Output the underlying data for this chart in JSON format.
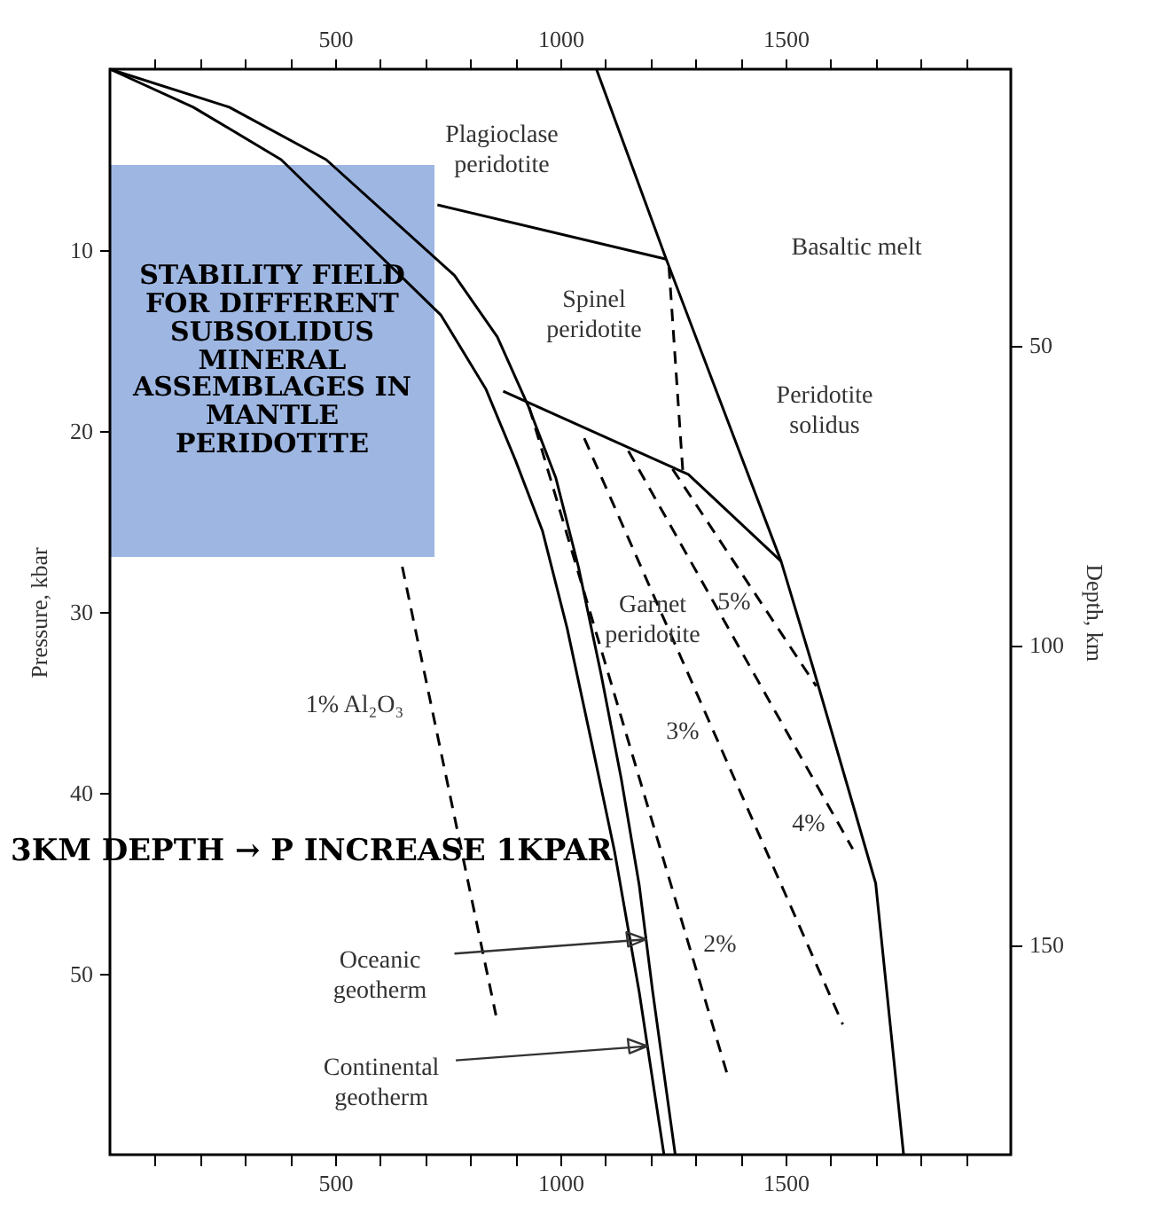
{
  "chart_data": {
    "type": "line",
    "ylabel": "Pressure, kbar",
    "y2label": "Depth, km",
    "xlim": [
      0,
      2000
    ],
    "xticks": [
      {
        "value": 100,
        "label": null
      },
      {
        "value": 200,
        "label": null
      },
      {
        "value": 300,
        "label": null
      },
      {
        "value": 400,
        "label": null
      },
      500,
      {
        "value": 600,
        "label": null
      },
      {
        "value": 700,
        "label": null
      },
      {
        "value": 800,
        "label": null
      },
      {
        "value": 900,
        "label": null
      },
      1000,
      {
        "value": 1100,
        "label": null
      },
      {
        "value": 1200,
        "label": null
      },
      {
        "value": 1300,
        "label": null
      },
      {
        "value": 1400,
        "label": null
      },
      1500,
      {
        "value": 1600,
        "label": null
      },
      {
        "value": 1700,
        "label": null
      },
      {
        "value": 1800,
        "label": null
      },
      {
        "value": 1900,
        "label": null
      }
    ],
    "x2lim": [
      0,
      2000
    ],
    "x2ticks": [
      {
        "value": 100,
        "label": null
      },
      {
        "value": 200,
        "label": null
      },
      {
        "value": 300,
        "label": null
      },
      {
        "value": 400,
        "label": null
      },
      500,
      {
        "value": 600,
        "label": null
      },
      {
        "value": 700,
        "label": null
      },
      {
        "value": 800,
        "label": null
      },
      {
        "value": 900,
        "label": null
      },
      1000,
      {
        "value": 1100,
        "label": null
      },
      {
        "value": 1200,
        "label": null
      },
      {
        "value": 1300,
        "label": null
      },
      {
        "value": 1400,
        "label": null
      },
      1500,
      {
        "value": 1600,
        "label": null
      },
      {
        "value": 1700,
        "label": null
      },
      {
        "value": 1800,
        "label": null
      },
      {
        "value": 1900,
        "label": null
      }
    ],
    "ylim": [
      60,
      0
    ],
    "yticks": [
      10,
      20,
      30,
      40,
      50
    ],
    "y2lim": [
      185,
      4
    ],
    "y2ticks": [
      50,
      100,
      150
    ],
    "grid": false,
    "line_style": "solid",
    "series": [
      {
        "color": "#000000",
        "x": [
          0,
          185,
          380,
          735,
          835,
          900,
          960,
          1015,
          1070,
          1120,
          1175,
          1230
        ],
        "values": [
          0,
          2.1,
          5,
          13.6,
          17.7,
          21.6,
          25.5,
          30.9,
          37.3,
          43.2,
          51,
          60
        ]
      },
      {
        "color": "#000000",
        "x": [
          0,
          265,
          480,
          765,
          860,
          930,
          990,
          1040,
          1090,
          1135,
          1175,
          1205,
          1255
        ],
        "values": [
          0,
          2.1,
          5,
          11.4,
          14.8,
          18.7,
          22.6,
          27.5,
          33.4,
          39.2,
          45.1,
          51,
          60
        ]
      },
      {
        "color": "#000000",
        "x": [
          1080,
          1235,
          1490,
          1560,
          1650,
          1700,
          1762
        ],
        "values": [
          0,
          10.5,
          27.2,
          33,
          40.7,
          45,
          60
        ]
      },
      {
        "color": "#000000",
        "x": [
          727,
          1235
        ],
        "values": [
          7.5,
          10.5
        ]
      },
      {
        "color": "#000000",
        "x": [
          873,
          1284,
          1490
        ],
        "values": [
          17.8,
          22.4,
          27.2
        ]
      },
      {
        "color": "#000000",
        "line_style": "dashed",
        "x": [
          1241,
          1272
        ],
        "values": [
          10.9,
          22.3
        ]
      },
      {
        "color": "#000000",
        "line_style": "dashed",
        "x": [
          649,
          857
        ],
        "values": [
          27.5,
          52.3
        ]
      },
      {
        "color": "#000000",
        "line_style": "dashed",
        "x": [
          931,
          1371
        ],
        "values": [
          18.7,
          55.6
        ]
      },
      {
        "color": "#000000",
        "line_style": "dashed",
        "x": [
          1053,
          1627
        ],
        "values": [
          20.4,
          52.8
        ]
      },
      {
        "color": "#000000",
        "line_style": "dashed",
        "x": [
          1151,
          1649
        ],
        "values": [
          21.1,
          43.1
        ]
      },
      {
        "color": "#000000",
        "line_style": "dashed",
        "x": [
          1249,
          1568
        ],
        "values": [
          22.1,
          34.1
        ]
      }
    ],
    "annotations": [
      "Plagioclase\nperidotite",
      "Basaltic melt",
      "Spinel\nperidotite",
      "Peridotite\nsolidus",
      "Garnet\nperidotite",
      "5%",
      "3%",
      "4%",
      "2%",
      "1% Al₂O₃",
      {
        "text": "Oceanic\ngeotherm",
        "x": 1190,
        "y": 48.1
      },
      {
        "text": "Continental\ngeotherm",
        "x": 1193,
        "y": 54
      },
      "STABILITY FIELD FOR DIFFERENT SUBSOLIDUS MINERAL ASSEMBLAGES IN MANTLE PERIDOTITE",
      "3KM DEPTH → P INCREASE 1KPAR"
    ]
  }
}
